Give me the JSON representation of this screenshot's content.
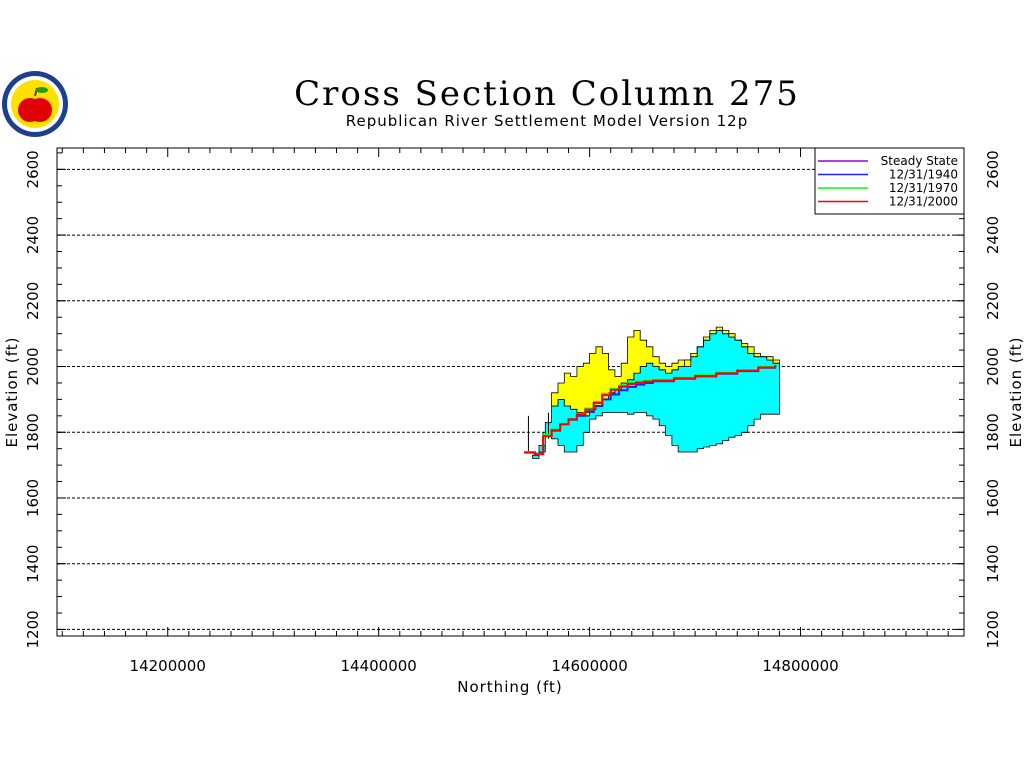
{
  "chart_data": {
    "type": "area",
    "title": "Cross Section Column 275",
    "subtitle": "Republican River Settlement Model Version 12p",
    "xlabel": "Northing (ft)",
    "ylabel": "Elevation (ft)",
    "xlim": [
      14095000,
      14955000
    ],
    "ylim": [
      1180000,
      2665000
    ],
    "y_scale_divisor": 1000,
    "grid": true,
    "legend": "top-right",
    "x_ticks": [
      {
        "value": 14200000,
        "label": "14200000"
      },
      {
        "value": 14400000,
        "label": "14400000"
      },
      {
        "value": 14600000,
        "label": "14600000"
      },
      {
        "value": 14800000,
        "label": "14800000"
      }
    ],
    "y_ticks": [
      {
        "value": 1200000,
        "label": "1200"
      },
      {
        "value": 1400000,
        "label": "1400"
      },
      {
        "value": 1600000,
        "label": "1600"
      },
      {
        "value": 1800000,
        "label": "1800"
      },
      {
        "value": 2000000,
        "label": "2000"
      },
      {
        "value": 2200000,
        "label": "2200"
      },
      {
        "value": 2400000,
        "label": "2400"
      },
      {
        "value": 2600000,
        "label": "2600"
      }
    ],
    "layers": [
      {
        "color": "#00ffff",
        "x": [
          14546000,
          14552000,
          14558000,
          14564000,
          14570000,
          14576000,
          14582000,
          14588000,
          14594000,
          14600000,
          14606000,
          14612000,
          14618000,
          14624000,
          14630000,
          14636000,
          14642000,
          14648000,
          14654000,
          14660000,
          14666000,
          14672000,
          14678000,
          14684000,
          14690000,
          14696000,
          14702000,
          14708000,
          14714000,
          14720000,
          14726000,
          14732000,
          14738000,
          14744000,
          14750000,
          14756000,
          14762000,
          14768000,
          14774000
        ],
        "top": [
          1730000,
          1760000,
          1830000,
          1880000,
          1900000,
          1880000,
          1870000,
          1860000,
          1850000,
          1870000,
          1880000,
          1900000,
          1920000,
          1930000,
          1950000,
          1960000,
          1980000,
          2000000,
          2010000,
          2000000,
          1990000,
          1980000,
          1990000,
          2000000,
          2020000,
          2040000,
          2060000,
          2080000,
          2100000,
          2110000,
          2100000,
          2090000,
          2080000,
          2060000,
          2040000,
          2030000,
          2030000,
          2020000,
          2010000
        ],
        "bottom": [
          1720000,
          1740000,
          1790000,
          1780000,
          1760000,
          1740000,
          1740000,
          1760000,
          1800000,
          1840000,
          1850000,
          1860000,
          1860000,
          1860000,
          1860000,
          1855000,
          1860000,
          1860000,
          1850000,
          1840000,
          1820000,
          1790000,
          1760000,
          1740000,
          1740000,
          1740000,
          1750000,
          1755000,
          1760000,
          1765000,
          1775000,
          1785000,
          1790000,
          1800000,
          1820000,
          1840000,
          1855000,
          1855000,
          1855000
        ]
      },
      {
        "color": "#ffff00",
        "x": [
          14564000,
          14570000,
          14576000,
          14582000,
          14588000,
          14594000,
          14600000,
          14606000,
          14612000,
          14618000,
          14624000,
          14630000,
          14636000,
          14642000,
          14648000,
          14654000,
          14660000,
          14666000,
          14672000,
          14678000,
          14684000,
          14690000,
          14696000,
          14702000,
          14708000,
          14714000,
          14720000,
          14726000,
          14732000,
          14738000,
          14744000,
          14750000,
          14756000,
          14762000,
          14768000,
          14774000
        ],
        "top": [
          1920000,
          1950000,
          1980000,
          1970000,
          2000000,
          2010000,
          2040000,
          2060000,
          2040000,
          1990000,
          1970000,
          2010000,
          2090000,
          2110000,
          2080000,
          2060000,
          2030000,
          2010000,
          2000000,
          2010000,
          2020000,
          2000000,
          2030000,
          2060000,
          2090000,
          2110000,
          2120000,
          2110000,
          2100000,
          2080000,
          2070000,
          2060000,
          2040000,
          2030000,
          2030000,
          2020000
        ],
        "bottom": [
          1880000,
          1900000,
          1880000,
          1870000,
          1860000,
          1850000,
          1870000,
          1880000,
          1900000,
          1920000,
          1930000,
          1950000,
          1960000,
          1980000,
          2000000,
          2010000,
          2000000,
          1990000,
          1980000,
          1990000,
          2000000,
          2020000,
          2040000,
          2060000,
          2080000,
          2100000,
          2110000,
          2100000,
          2090000,
          2080000,
          2060000,
          2040000,
          2030000,
          2030000,
          2020000,
          2010000
        ]
      }
    ],
    "marks": [
      {
        "x": 14542000,
        "y1": 1740000,
        "y2": 1850000
      },
      {
        "x": 14556000,
        "y1": 1730000,
        "y2": 1800000
      },
      {
        "x": 14561000,
        "y1": 1780000,
        "y2": 1860000
      }
    ],
    "series": [
      {
        "name": "Steady State",
        "color": "#a000c0",
        "x": [
          14538000,
          14548000,
          14556000,
          14564000,
          14572000,
          14580000,
          14588000,
          14596000,
          14604000,
          14612000,
          14620000,
          14628000,
          14636000,
          14644000,
          14652000,
          14660000,
          14680000,
          14700000,
          14720000,
          14740000,
          14760000,
          14776000
        ],
        "y": [
          1740000,
          1735000,
          1790000,
          1805000,
          1825000,
          1840000,
          1855000,
          1870000,
          1890000,
          1915000,
          1930000,
          1940000,
          1948000,
          1952000,
          1955000,
          1958000,
          1965000,
          1972000,
          1980000,
          1988000,
          1998000,
          2005000
        ]
      },
      {
        "name": "12/31/1940",
        "color": "#2020ff",
        "x": [
          14538000,
          14548000,
          14556000,
          14564000,
          14572000,
          14580000,
          14588000,
          14596000,
          14604000,
          14612000,
          14620000,
          14628000,
          14636000,
          14644000,
          14652000,
          14660000,
          14680000,
          14700000,
          14720000,
          14740000,
          14760000,
          14776000
        ],
        "y": [
          1740000,
          1735000,
          1790000,
          1805000,
          1825000,
          1838000,
          1850000,
          1862000,
          1880000,
          1900000,
          1915000,
          1928000,
          1938000,
          1945000,
          1950000,
          1955000,
          1963000,
          1970000,
          1978000,
          1986000,
          1996000,
          2003000
        ]
      },
      {
        "name": "12/31/1970",
        "color": "#00ff00",
        "x": [
          14538000,
          14548000,
          14556000,
          14564000,
          14572000,
          14580000,
          14588000,
          14596000,
          14604000,
          14612000,
          14620000,
          14628000,
          14636000,
          14644000,
          14652000,
          14660000,
          14680000,
          14700000,
          14720000,
          14740000,
          14760000,
          14776000
        ],
        "y": [
          1740000,
          1734000,
          1792000,
          1808000,
          1826000,
          1840000,
          1856000,
          1872000,
          1892000,
          1917000,
          1932000,
          1942000,
          1950000,
          1954000,
          1957000,
          1960000,
          1966000,
          1973000,
          1981000,
          1989000,
          1999000,
          2006000
        ]
      },
      {
        "name": "12/31/2000",
        "color": "#ff0000",
        "x": [
          14538000,
          14548000,
          14556000,
          14564000,
          14572000,
          14580000,
          14588000,
          14596000,
          14604000,
          14612000,
          14620000,
          14628000,
          14636000,
          14644000,
          14652000,
          14660000,
          14680000,
          14700000,
          14720000,
          14740000,
          14760000,
          14776000
        ],
        "y": [
          1738000,
          1733000,
          1788000,
          1806000,
          1824000,
          1839000,
          1854000,
          1869000,
          1889000,
          1913000,
          1929000,
          1939000,
          1947000,
          1951000,
          1954000,
          1957000,
          1964000,
          1971000,
          1979000,
          1987000,
          1997000,
          2004000
        ]
      }
    ]
  }
}
